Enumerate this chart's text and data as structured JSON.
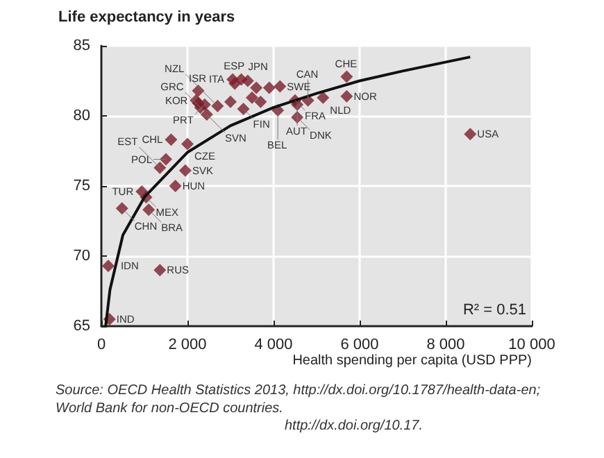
{
  "chart_data": {
    "type": "scatter",
    "ylabel": "Life expectancy in years",
    "xlabel": "Health spending per capita (USD PPP)",
    "xlim": [
      0,
      10000
    ],
    "xticks": [
      0,
      {
        "value": 2000,
        "label": "2 000"
      },
      {
        "value": 4000,
        "label": "4 000"
      },
      {
        "value": 6000,
        "label": "6 000"
      },
      {
        "value": 8000,
        "label": "8 000"
      },
      {
        "value": 10000,
        "label": "10 000"
      }
    ],
    "ylim": [
      65,
      85
    ],
    "yticks": [
      65,
      70,
      75,
      80,
      85
    ],
    "grid": true,
    "marker": "diamond",
    "series": [
      {
        "color": "#7b1e2b",
        "x": [
          3050,
          3100,
          3250,
          2250,
          2200,
          2400,
          2300,
          2450,
          2700,
          3300,
          4150,
          4500,
          4550,
          5150,
          4800,
          4100,
          4550,
          5700,
          5700,
          8570,
          1620,
          2000,
          1500,
          1360,
          1950,
          1720,
          940,
          1040,
          480,
          1100,
          160,
          1360,
          190,
          3400,
          3600,
          3900,
          3500,
          3700,
          3000,
          2250
        ],
        "values": [
          82.6,
          82.3,
          82.6,
          81.8,
          81.1,
          80.8,
          80.6,
          80.1,
          80.7,
          80.5,
          82.1,
          81.1,
          80.8,
          81.3,
          81.1,
          80.4,
          79.9,
          82.8,
          81.4,
          78.7,
          78.3,
          78.0,
          76.9,
          76.3,
          76.1,
          75.0,
          74.6,
          74.2,
          73.4,
          73.3,
          69.3,
          69.0,
          65.5,
          82.5,
          82.0,
          82.0,
          81.3,
          81.0,
          81.0,
          80.9
        ]
      },
      {
        "type": "line",
        "color": "#111111",
        "marker": "none",
        "x": [
          100,
          200,
          500,
          1000,
          2000,
          3000,
          4000,
          5000,
          6000,
          7000,
          8570
        ],
        "values": [
          65.0,
          67.6,
          71.5,
          74.2,
          77.4,
          79.3,
          80.6,
          81.6,
          82.5,
          83.2,
          84.2
        ]
      }
    ],
    "annotations": [
      "R² = 0.51",
      "Source: OECD Health Statistics 2013, http://dx.doi.org/10.1787/health-data-en;\nWorld Bank for non-OECD countries.",
      "http://dx.doi.org/10.17.",
      {
        "text": "ITA",
        "x": 3050,
        "y": 82.6
      },
      {
        "text": "ESP",
        "x": 3100,
        "y": 82.3
      },
      {
        "text": "JPN",
        "x": 3250,
        "y": 82.6
      },
      {
        "text": "ISR",
        "x": 2250,
        "y": 81.8
      },
      {
        "text": "KOR",
        "x": 2200,
        "y": 81.1
      },
      {
        "text": "PRT",
        "x": 2400,
        "y": 80.8
      },
      {
        "text": "GRC",
        "x": 2300,
        "y": 80.6
      },
      {
        "text": "SVN",
        "x": 2450,
        "y": 80.1
      },
      {
        "text": "NZL",
        "x": 2700,
        "y": 80.7
      },
      {
        "text": "FIN",
        "x": 3300,
        "y": 80.5
      },
      {
        "text": "SWE",
        "x": 4150,
        "y": 82.1
      },
      {
        "text": "FRA",
        "x": 4500,
        "y": 81.1
      },
      {
        "text": "AUT",
        "x": 4550,
        "y": 80.8
      },
      {
        "text": "NLD",
        "x": 5150,
        "y": 81.3
      },
      {
        "text": "CAN",
        "x": 4800,
        "y": 81.1
      },
      {
        "text": "BEL",
        "x": 4100,
        "y": 80.4
      },
      {
        "text": "DNK",
        "x": 4550,
        "y": 79.9
      },
      {
        "text": "CHE",
        "x": 5700,
        "y": 82.8
      },
      {
        "text": "NOR",
        "x": 5700,
        "y": 81.4
      },
      {
        "text": "USA",
        "x": 8570,
        "y": 78.7
      },
      {
        "text": "CHL",
        "x": 1620,
        "y": 78.3
      },
      {
        "text": "CZE",
        "x": 2000,
        "y": 78.0
      },
      {
        "text": "POL",
        "x": 1500,
        "y": 76.9
      },
      {
        "text": "EST",
        "x": 1360,
        "y": 76.3
      },
      {
        "text": "SVK",
        "x": 1950,
        "y": 76.1
      },
      {
        "text": "HUN",
        "x": 1720,
        "y": 75.0
      },
      {
        "text": "TUR",
        "x": 940,
        "y": 74.6
      },
      {
        "text": "MEX",
        "x": 1040,
        "y": 74.2
      },
      {
        "text": "CHN",
        "x": 480,
        "y": 73.4
      },
      {
        "text": "BRA",
        "x": 1100,
        "y": 73.3
      },
      {
        "text": "IDN",
        "x": 160,
        "y": 69.3
      },
      {
        "text": "RUS",
        "x": 1360,
        "y": 69.0
      },
      {
        "text": "IND",
        "x": 190,
        "y": 65.5
      }
    ]
  }
}
